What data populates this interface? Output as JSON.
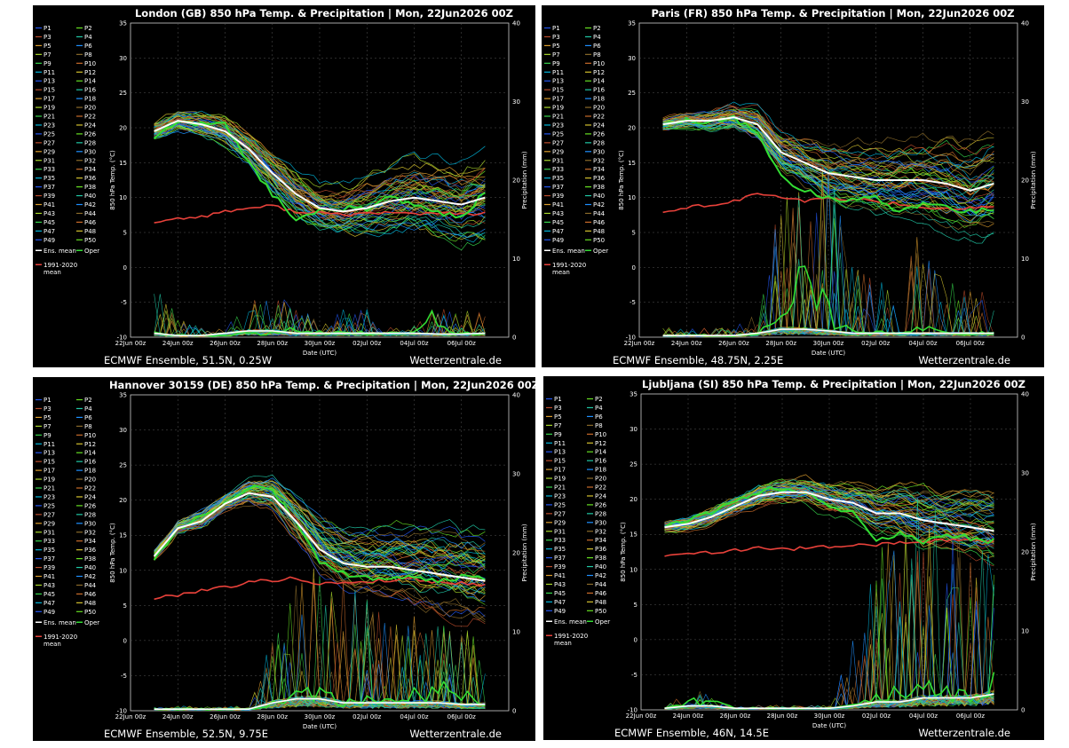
{
  "colors": {
    "background": "#000000",
    "ens_mean": "#ffffff",
    "oper": "#33dd33",
    "climate_mean": "#e8413a",
    "member_palette": [
      "#2255ee",
      "#1e90ff",
      "#00b4d8",
      "#20c9a6",
      "#35d44a",
      "#66e022",
      "#a8d62a",
      "#d4c12e",
      "#d99a2b",
      "#c96b2a",
      "#b84a2a",
      "#8a6a2a"
    ]
  },
  "legend": {
    "members": [
      "P1",
      "P2",
      "P3",
      "P4",
      "P5",
      "P6",
      "P7",
      "P8",
      "P9",
      "P10",
      "P11",
      "P12",
      "P13",
      "P14",
      "P15",
      "P16",
      "P17",
      "P18",
      "P19",
      "P20",
      "P21",
      "P22",
      "P23",
      "P24",
      "P25",
      "P26",
      "P27",
      "P28",
      "P29",
      "P30",
      "P31",
      "P32",
      "P33",
      "P34",
      "P35",
      "P36",
      "P37",
      "P38",
      "P39",
      "P40",
      "P41",
      "P42",
      "P43",
      "P44",
      "P45",
      "P46",
      "P47",
      "P48",
      "P49",
      "P50"
    ],
    "ens_mean": "Ens. mean",
    "oper": "Oper",
    "climate_line1": "1991-2020",
    "climate_line2": "mean"
  },
  "chart_data": [
    {
      "type": "line",
      "title": "London  (GB)  850 hPa Temp. & Precipitation | Mon, 22Jun2026 00Z",
      "footer_left": "ECMWF Ensemble, 51.5N, 0.25W",
      "footer_right": "Wetterzentrale.de",
      "xlabel": "Date (UTC)",
      "ylabel": "850 hPa Temp. (°C)",
      "y2label": "Precipitation (mm)",
      "x_ticks": [
        "22Jun 00z",
        "24Jun 00z",
        "26Jun 00z",
        "28Jun 00z",
        "30Jun 00z",
        "02Jul 00z",
        "04Jul 00z",
        "06Jul 00z"
      ],
      "ylim": [
        -10,
        35
      ],
      "y_ticks": [
        "-10",
        "-5",
        "0",
        "5",
        "10",
        "15",
        "20",
        "25",
        "30",
        "35"
      ],
      "y2lim": [
        0,
        40
      ],
      "y2_ticks": [
        "0",
        "10",
        "20",
        "30",
        "40"
      ],
      "grid": true,
      "legend_position": "left",
      "x_days": [
        1,
        2,
        3,
        4,
        5,
        6,
        7,
        8,
        9,
        10,
        11,
        12,
        13,
        14,
        15
      ],
      "ens_mean": [
        19.5,
        21,
        20.5,
        19.5,
        17,
        13.5,
        10.5,
        8.5,
        8,
        8.5,
        9.5,
        10,
        9.5,
        9,
        10
      ],
      "oper": [
        18.5,
        21,
        20.5,
        20.5,
        15,
        10.5,
        7,
        8,
        8.5,
        8.5,
        10,
        9,
        8,
        7,
        11
      ],
      "climate_mean": [
        6.5,
        7,
        7.3,
        8,
        8.5,
        8.8,
        8,
        7.8,
        7.5,
        7.8,
        7.8,
        7.7,
        7.8,
        7.6,
        7.8
      ],
      "spread_temp": [
        1.5,
        1.5,
        2,
        2.5,
        3,
        3.5,
        4,
        4,
        4.5,
        5,
        5.5,
        6,
        6,
        6,
        6.5
      ],
      "precip_mean": [
        0.5,
        0.2,
        0.2,
        0.5,
        0.8,
        0.8,
        0.5,
        0.5,
        0.5,
        0.5,
        0.5,
        0.5,
        0.4,
        0.4,
        0.5
      ],
      "precip_oper": [
        0.5,
        0.2,
        0.2,
        0.2,
        0.5,
        0.5,
        1,
        0.5,
        0.5,
        0.5,
        0.5,
        0.5,
        3,
        0.5,
        0.5
      ],
      "precip_spike": [
        8,
        2,
        1,
        1,
        4,
        5,
        3,
        2,
        3,
        3,
        2,
        2,
        3,
        3,
        3
      ]
    },
    {
      "type": "line",
      "title": "Paris  (FR)  850 hPa Temp. & Precipitation | Mon, 22Jun2026 00Z",
      "footer_left": "ECMWF Ensemble, 48.75N, 2.25E",
      "footer_right": "Wetterzentrale.de",
      "xlabel": "Date (UTC)",
      "ylabel": "850 hPa Temp. (°C)",
      "y2label": "Precipitation (mm)",
      "x_ticks": [
        "22Jun 00z",
        "24Jun 00z",
        "26Jun 00z",
        "28Jun 00z",
        "30Jun 00z",
        "02Jul 00z",
        "04Jul 00z",
        "06Jul 00z"
      ],
      "ylim": [
        -10,
        35
      ],
      "y_ticks": [
        "-10",
        "-5",
        "0",
        "5",
        "10",
        "15",
        "20",
        "25",
        "30",
        "35"
      ],
      "y2lim": [
        0,
        40
      ],
      "y2_ticks": [
        "0",
        "10",
        "20",
        "30",
        "40"
      ],
      "grid": true,
      "legend_position": "left",
      "x_days": [
        1,
        2,
        3,
        4,
        5,
        6,
        7,
        8,
        9,
        10,
        11,
        12,
        13,
        14,
        15
      ],
      "ens_mean": [
        20.5,
        21,
        21,
        21.5,
        20.5,
        16.5,
        15,
        13.5,
        13,
        12.5,
        12.5,
        12.5,
        12,
        11,
        12
      ],
      "oper": [
        20.5,
        21,
        21,
        21.5,
        19,
        13,
        11,
        10,
        9.5,
        10,
        8,
        9,
        8.5,
        8,
        8.5
      ],
      "climate_mean": [
        8,
        8.5,
        9,
        9.5,
        10.5,
        10,
        9.5,
        10,
        9.7,
        9.5,
        9,
        8.7,
        8.5,
        8.5,
        8.6
      ],
      "spread_temp": [
        1,
        1,
        1.5,
        2,
        3,
        3.5,
        4,
        4.5,
        5,
        5.5,
        6,
        6,
        6.5,
        6.5,
        7
      ],
      "precip_mean": [
        0.2,
        0.2,
        0.2,
        0.2,
        0.5,
        1,
        1,
        0.8,
        0.5,
        0.5,
        0.5,
        0.5,
        0.5,
        0.5,
        0.5
      ],
      "precip_oper": [
        0.2,
        0.2,
        0.2,
        0.2,
        0.5,
        2,
        10,
        3,
        1,
        0.5,
        0.5,
        1,
        0.5,
        0.5,
        0.5
      ],
      "precip_spike": [
        1,
        1,
        1,
        1,
        3,
        15,
        16,
        20,
        8,
        6,
        6,
        14,
        6,
        5,
        6
      ]
    },
    {
      "type": "line",
      "title": "Hannover 30159 (DE)  850 hPa Temp. & Precipitation | Mon, 22Jun2026 00Z",
      "footer_left": "ECMWF Ensemble, 52.5N, 9.75E",
      "footer_right": "Wetterzentrale.de",
      "xlabel": "Date (UTC)",
      "ylabel": "850 hPa Temp. (°C)",
      "y2label": "Precipitation (mm)",
      "x_ticks": [
        "22Jun 00z",
        "24Jun 00z",
        "26Jun 00z",
        "28Jun 00z",
        "30Jun 00z",
        "02Jul 00z",
        "04Jul 00z",
        "06Jul 00z"
      ],
      "ylim": [
        -10,
        35
      ],
      "y_ticks": [
        "-10",
        "-5",
        "0",
        "5",
        "10",
        "15",
        "20",
        "25",
        "30",
        "35"
      ],
      "y2lim": [
        0,
        40
      ],
      "y2_ticks": [
        "0",
        "10",
        "20",
        "30",
        "40"
      ],
      "grid": true,
      "legend_position": "left",
      "x_days": [
        1,
        2,
        3,
        4,
        5,
        6,
        7,
        8,
        9,
        10,
        11,
        12,
        13,
        14,
        15
      ],
      "ens_mean": [
        12,
        16,
        17,
        19.5,
        21,
        20.5,
        17,
        13,
        11,
        10.5,
        10.5,
        10,
        9.5,
        9,
        8.5
      ],
      "oper": [
        11.5,
        16,
        17.5,
        19.5,
        22,
        21.5,
        17,
        11,
        9.5,
        9,
        9,
        9,
        8.5,
        9,
        9
      ],
      "climate_mean": [
        6,
        6.5,
        7.2,
        7.6,
        8.3,
        8.6,
        8.9,
        8,
        8.3,
        8.4,
        8.6,
        8.8,
        8.3,
        8.2,
        7.9
      ],
      "spread_temp": [
        1,
        1,
        1.5,
        1.5,
        2,
        3,
        4,
        5,
        5.5,
        6,
        6,
        6.5,
        7,
        7,
        7
      ],
      "precip_mean": [
        0.2,
        0.2,
        0.2,
        0.2,
        0.2,
        1,
        1.5,
        1.5,
        1,
        1,
        1,
        1,
        1,
        0.8,
        0.8
      ],
      "precip_oper": [
        0.2,
        0.2,
        0.2,
        0.2,
        0.2,
        1,
        2.5,
        2,
        1,
        1.5,
        1,
        2,
        3,
        2,
        1
      ],
      "precip_spike": [
        0.5,
        0.5,
        0.5,
        0.5,
        0.5,
        8,
        14,
        16,
        14,
        12,
        9,
        10,
        9,
        9,
        8
      ]
    },
    {
      "type": "line",
      "title": "Ljubljana  (SI)  850 hPa Temp. & Precipitation | Mon, 22Jun2026 00Z",
      "footer_left": "ECMWF Ensemble, 46N, 14.5E",
      "footer_right": "Wetterzentrale.de",
      "xlabel": "Date (UTC)",
      "ylabel": "850 hPa Temp. (°C)",
      "y2label": "Precipitation (mm)",
      "x_ticks": [
        "22Jun 00z",
        "24Jun 00z",
        "26Jun 00z",
        "28Jun 00z",
        "30Jun 00z",
        "02Jul 00z",
        "04Jul 00z",
        "06Jul 00z"
      ],
      "ylim": [
        -10,
        35
      ],
      "y_ticks": [
        "-10",
        "-5",
        "0",
        "5",
        "10",
        "15",
        "20",
        "25",
        "30",
        "35"
      ],
      "y2lim": [
        0,
        40
      ],
      "y2_ticks": [
        "0",
        "10",
        "20",
        "30",
        "40"
      ],
      "grid": true,
      "legend_position": "left",
      "x_days": [
        1,
        2,
        3,
        4,
        5,
        6,
        7,
        8,
        9,
        10,
        11,
        12,
        13,
        14,
        15
      ],
      "ens_mean": [
        16,
        16.5,
        17.5,
        19,
        20.5,
        21,
        21,
        20,
        19.5,
        18,
        18,
        17,
        16.5,
        16,
        15.5
      ],
      "oper": [
        16,
        17,
        18,
        19.5,
        21,
        21.5,
        21,
        19,
        18,
        14,
        15,
        14,
        15,
        14.5,
        14
      ],
      "climate_mean": [
        12,
        12.2,
        12.4,
        12.8,
        13,
        12.9,
        13,
        13.2,
        13.4,
        13.5,
        13.8,
        14,
        14.2,
        14,
        14
      ],
      "spread_temp": [
        1,
        1,
        1.5,
        1.5,
        2,
        2,
        2.5,
        3,
        3.5,
        4,
        4.5,
        5,
        5,
        5.5,
        6
      ],
      "precip_mean": [
        0.2,
        0.5,
        0.5,
        0.2,
        0.2,
        0.2,
        0.2,
        0.2,
        0.5,
        1,
        1,
        1.5,
        1.5,
        1.5,
        2
      ],
      "precip_oper": [
        0.2,
        1,
        1,
        0.2,
        0.2,
        0.2,
        0.2,
        0.2,
        0.5,
        2,
        2,
        3,
        2,
        2,
        3
      ],
      "precip_spike": [
        0.5,
        2,
        2,
        0.5,
        0.5,
        0.5,
        0.5,
        0.5,
        8,
        16,
        22,
        24,
        22,
        18,
        16
      ]
    }
  ]
}
